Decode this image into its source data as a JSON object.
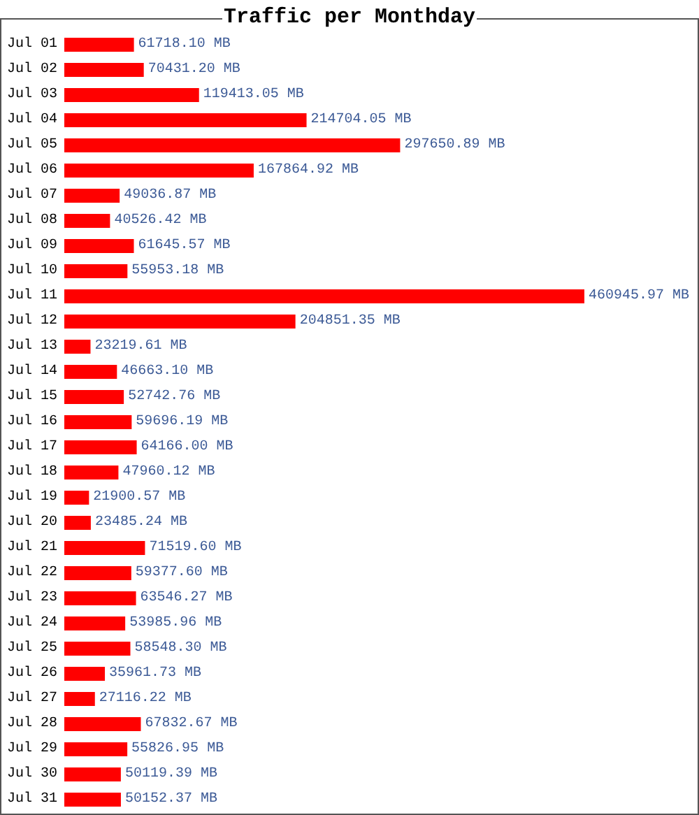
{
  "chart_data": {
    "type": "bar",
    "orientation": "horizontal",
    "title": "Traffic per Monthday",
    "tick_labels": "y",
    "color": "#ff0000",
    "categories": [
      "Jul 01",
      "Jul 02",
      "Jul 03",
      "Jul 04",
      "Jul 05",
      "Jul 06",
      "Jul 07",
      "Jul 08",
      "Jul 09",
      "Jul 10",
      "Jul 11",
      "Jul 12",
      "Jul 13",
      "Jul 14",
      "Jul 15",
      "Jul 16",
      "Jul 17",
      "Jul 18",
      "Jul 19",
      "Jul 20",
      "Jul 21",
      "Jul 22",
      "Jul 23",
      "Jul 24",
      "Jul 25",
      "Jul 26",
      "Jul 27",
      "Jul 28",
      "Jul 29",
      "Jul 30",
      "Jul 31"
    ],
    "values": [
      61718.1,
      70431.2,
      119413.05,
      214704.05,
      297650.89,
      167864.92,
      49036.87,
      40526.42,
      61645.57,
      55953.18,
      460945.97,
      204851.35,
      23219.61,
      46663.1,
      52742.76,
      59696.19,
      64166.0,
      47960.12,
      21900.57,
      23485.24,
      71519.6,
      59377.6,
      63546.27,
      53985.96,
      58548.3,
      35961.73,
      27116.22,
      67832.67,
      55826.95,
      50119.39,
      50152.37
    ],
    "value_labels": [
      "61718.10 MB",
      "70431.20 MB",
      "119413.05 MB",
      "214704.05 MB",
      "297650.89 MB",
      "167864.92 MB",
      "49036.87 MB",
      "40526.42 MB",
      "61645.57 MB",
      "55953.18 MB",
      "460945.97 MB",
      "204851.35 MB",
      "23219.61 MB",
      "46663.10 MB",
      "52742.76 MB",
      "59696.19 MB",
      "64166.00 MB",
      "47960.12 MB",
      "21900.57 MB",
      "23485.24 MB",
      "71519.60 MB",
      "59377.60 MB",
      "63546.27 MB",
      "53985.96 MB",
      "58548.30 MB",
      "35961.73 MB",
      "27116.22 MB",
      "67832.67 MB",
      "55826.95 MB",
      "50119.39 MB",
      "50152.37 MB"
    ]
  }
}
